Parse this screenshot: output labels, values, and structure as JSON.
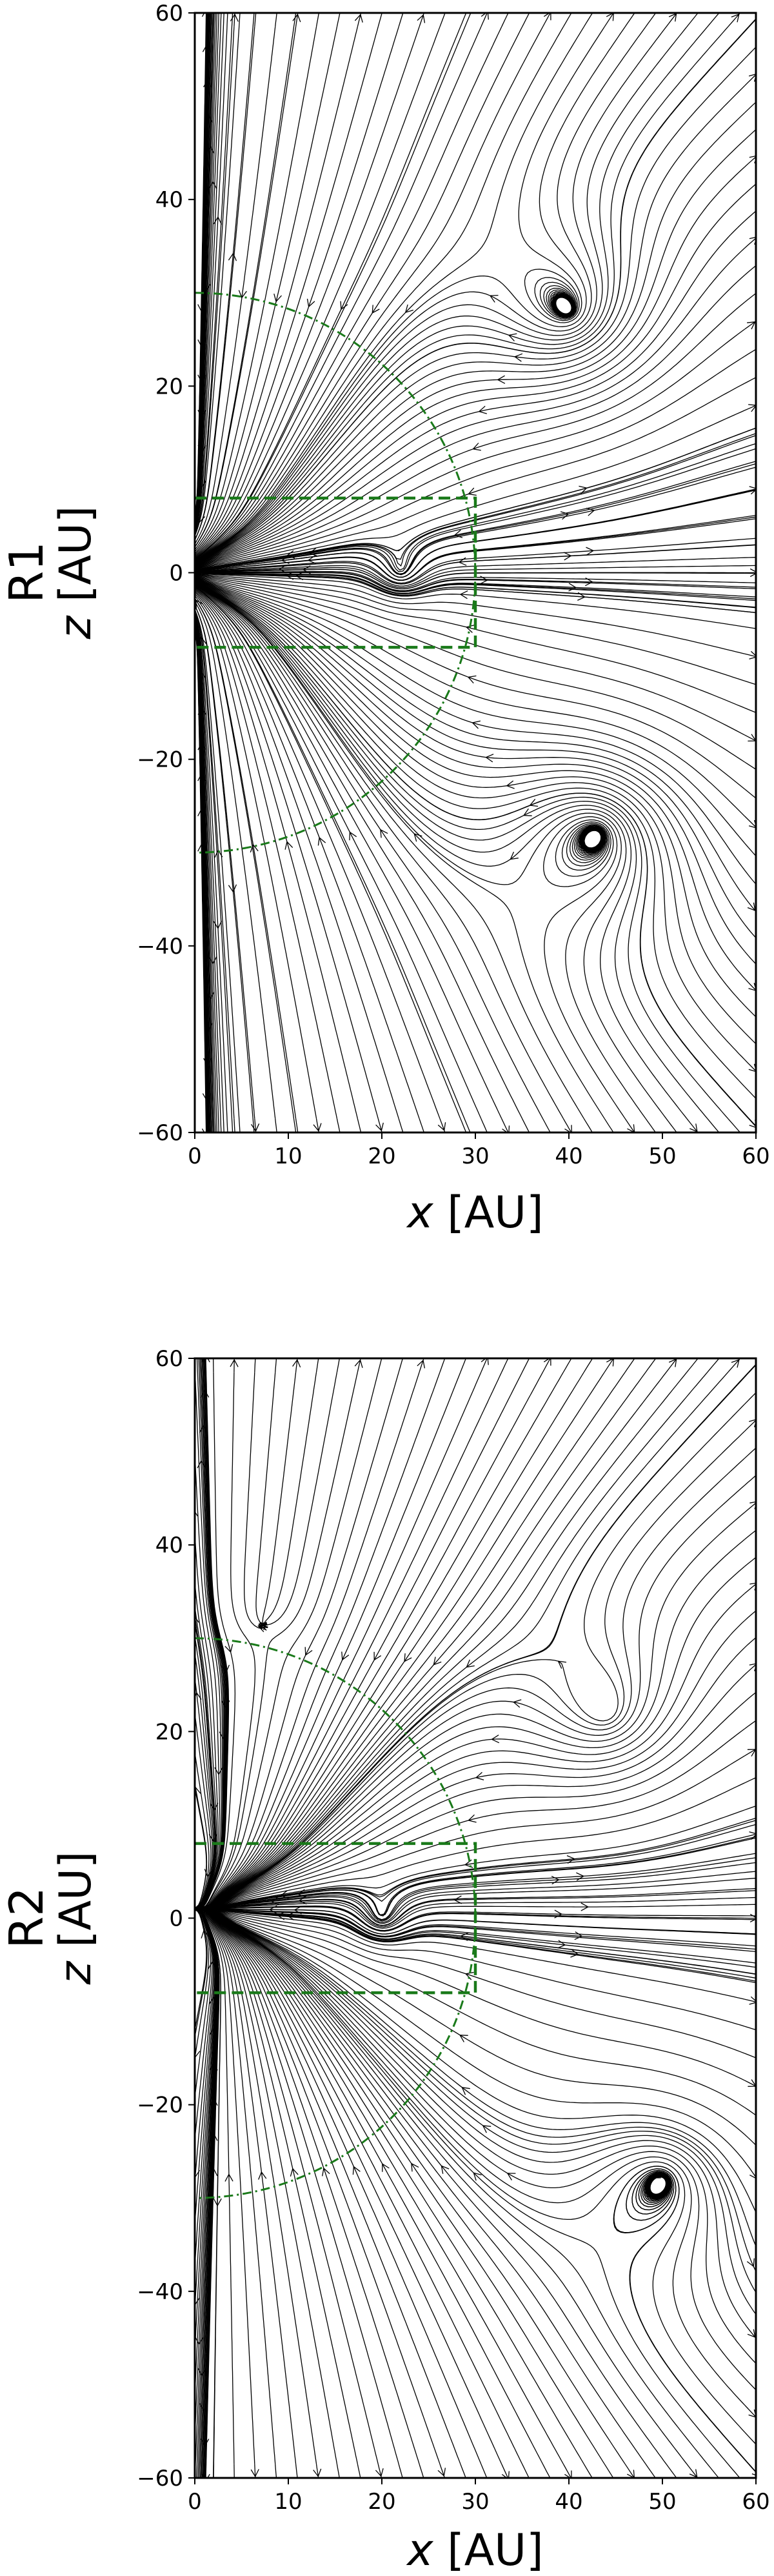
{
  "chart_data": [
    {
      "type": "streamplot",
      "row_label": "R1",
      "xlabel_var": "x",
      "xlabel_unit": " [AU]",
      "ylabel_var": "z",
      "ylabel_unit": " [AU]",
      "xlim": [
        0,
        60
      ],
      "ylim": [
        -60,
        60
      ],
      "xticks": [
        0,
        10,
        20,
        30,
        40,
        50,
        60
      ],
      "yticks": [
        -60,
        -40,
        -20,
        0,
        20,
        40,
        60
      ],
      "line_color": "#000000",
      "overlay_color": "#1a7a1a",
      "overlays": {
        "dashed_box": {
          "x_max": 30,
          "z_min": -8,
          "z_max": 8
        },
        "dashdot_circle_radius": 30
      },
      "features": {
        "star_position": [
          0,
          0
        ],
        "vortex_center": [
          22,
          0
        ]
      }
    },
    {
      "type": "streamplot",
      "row_label": "R2",
      "xlabel_var": "x",
      "xlabel_unit": " [AU]",
      "ylabel_var": "z",
      "ylabel_unit": " [AU]",
      "xlim": [
        0,
        60
      ],
      "ylim": [
        -60,
        60
      ],
      "xticks": [
        0,
        10,
        20,
        30,
        40,
        50,
        60
      ],
      "yticks": [
        -60,
        -40,
        -20,
        0,
        20,
        40,
        60
      ],
      "line_color": "#000000",
      "overlay_color": "#1a7a1a",
      "overlays": {
        "dashed_box": {
          "x_max": 30,
          "z_min": -8,
          "z_max": 8
        },
        "dashdot_circle_radius": 30
      },
      "features": {
        "star_position": [
          3,
          1
        ],
        "vortex_center": [
          20,
          0
        ],
        "null_point": [
          7.5,
          30
        ]
      }
    }
  ]
}
